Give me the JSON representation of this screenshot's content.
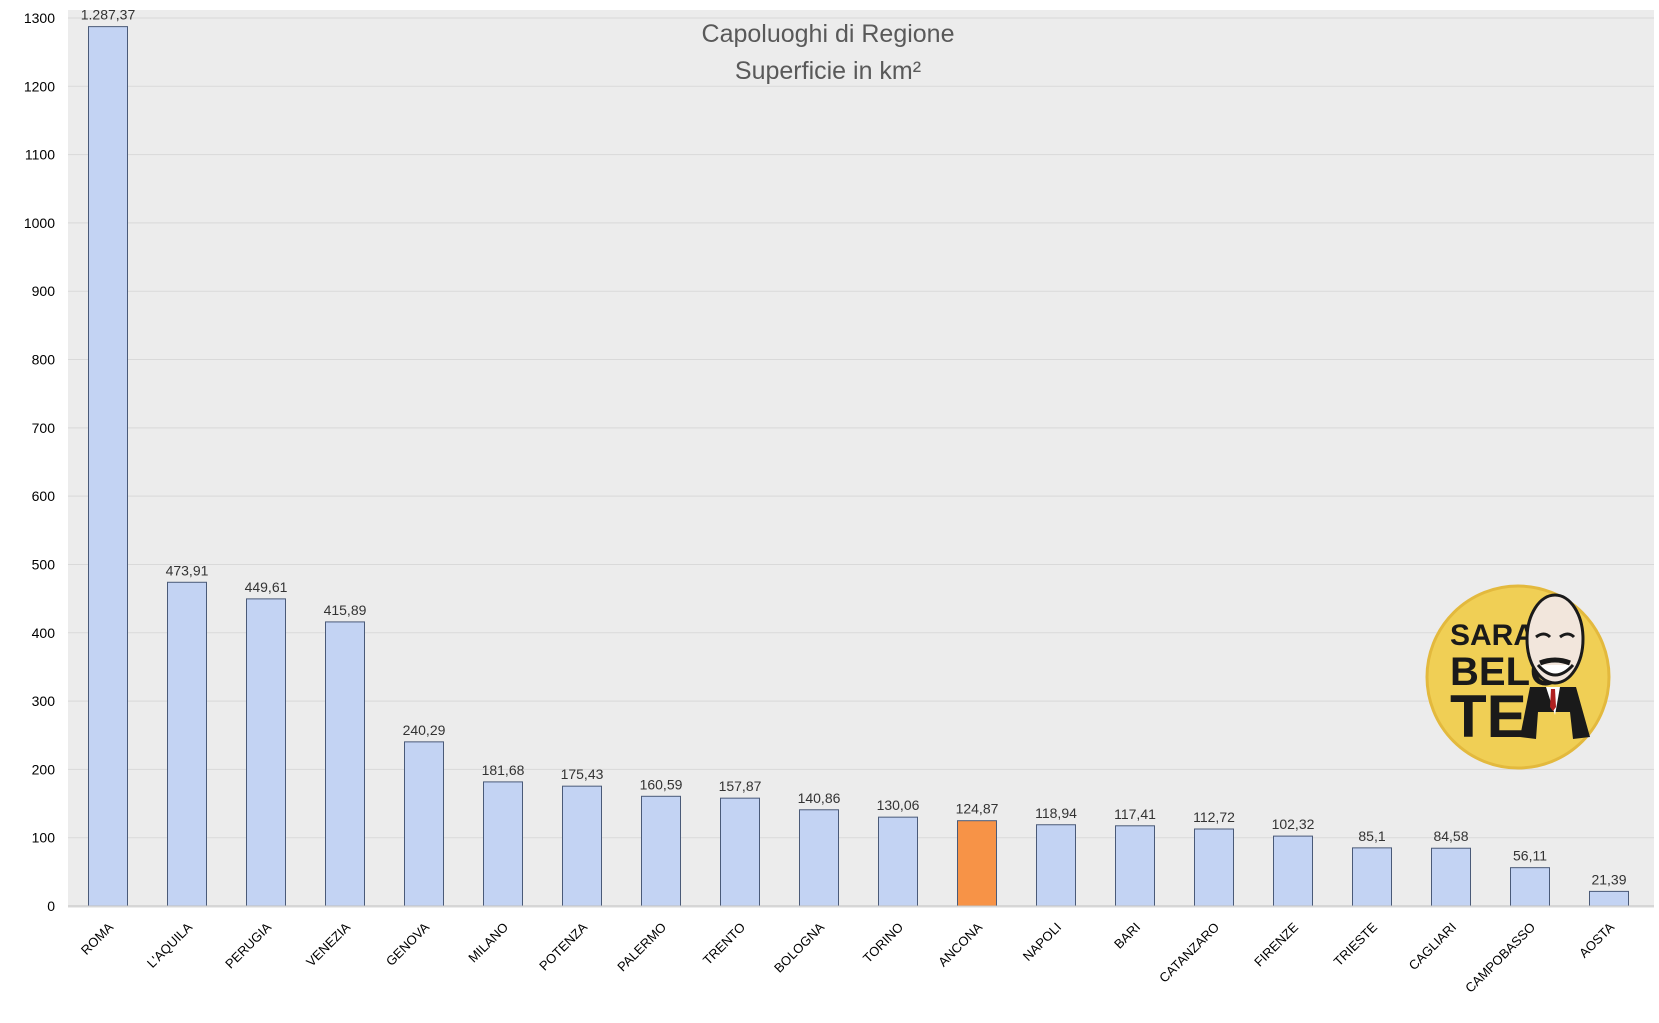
{
  "chart_data": {
    "type": "bar",
    "title": "Capoluoghi di Regione",
    "subtitle": "Superficie in km²",
    "xlabel": "",
    "ylabel": "",
    "ylim": [
      0,
      1300
    ],
    "yticks": [
      0,
      100,
      200,
      300,
      400,
      500,
      600,
      700,
      800,
      900,
      1000,
      1100,
      1200,
      1300
    ],
    "grid": true,
    "categories": [
      "ROMA",
      "L'AQUILA",
      "PERUGIA",
      "VENEZIA",
      "GENOVA",
      "MILANO",
      "POTENZA",
      "PALERMO",
      "TRENTO",
      "BOLOGNA",
      "TORINO",
      "ANCONA",
      "NAPOLI",
      "BARI",
      "CATANZARO",
      "FIRENZE",
      "TRIESTE",
      "CAGLIARI",
      "CAMPOBASSO",
      "AOSTA"
    ],
    "values": [
      1287.37,
      473.91,
      449.61,
      415.89,
      240.29,
      181.68,
      175.43,
      160.59,
      157.87,
      140.86,
      130.06,
      124.87,
      118.94,
      117.41,
      112.72,
      102.32,
      85.1,
      84.58,
      56.11,
      21.39
    ],
    "data_labels": [
      "1.287,37",
      "473,91",
      "449,61",
      "415,89",
      "240,29",
      "181,68",
      "175,43",
      "160,59",
      "157,87",
      "140,86",
      "130,06",
      "124,87",
      "118,94",
      "117,41",
      "112,72",
      "102,32",
      "85,1",
      "84,58",
      "56,11",
      "21,39"
    ],
    "highlight": "ANCONA",
    "colors": {
      "bar": "#c3d3f3",
      "bar_stroke": "#4a5a78",
      "highlight": "#f79347",
      "plot_bg": "#ececec",
      "grid": "#d9d9d9"
    }
  },
  "logo": {
    "lines": [
      "SARAN",
      "BELO",
      "TE"
    ],
    "circle_color": "#f0cf55"
  }
}
